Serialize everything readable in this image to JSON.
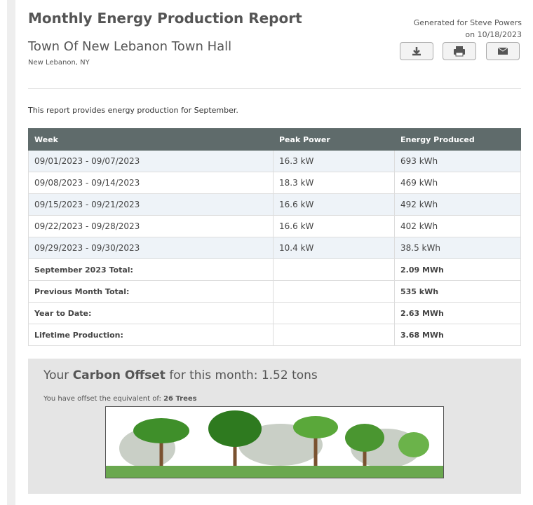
{
  "header": {
    "title": "Monthly Energy Production Report",
    "site_name": "Town Of New Lebanon Town Hall",
    "location": "New Lebanon, NY",
    "generated_for": "Generated for Steve Powers",
    "generated_on": "on 10/18/2023"
  },
  "intro": "This report provides energy production for September.",
  "table": {
    "columns": [
      "Week",
      "Peak Power",
      "Energy Produced"
    ],
    "rows": [
      [
        "09/01/2023 - 09/07/2023",
        "16.3 kW",
        "693 kWh"
      ],
      [
        "09/08/2023 - 09/14/2023",
        "18.3 kW",
        "469 kWh"
      ],
      [
        "09/15/2023 - 09/21/2023",
        "16.6 kW",
        "492 kWh"
      ],
      [
        "09/22/2023 - 09/28/2023",
        "16.6 kW",
        "402 kWh"
      ],
      [
        "09/29/2023 - 09/30/2023",
        "10.4 kW",
        "38.5 kWh"
      ]
    ],
    "totals": [
      [
        "September 2023 Total:",
        "2.09 MWh"
      ],
      [
        "Previous Month Total:",
        "535 kWh"
      ],
      [
        "Year to Date:",
        "2.63 MWh"
      ],
      [
        "Lifetime Production:",
        "3.68 MWh"
      ]
    ]
  },
  "carbon": {
    "prefix": "Your",
    "highlight": "Carbon Offset",
    "suffix": "for this month: 1.52 tons",
    "equivalent_label": "You have offset the equivalent of:",
    "equivalent_value": "26 Trees"
  }
}
